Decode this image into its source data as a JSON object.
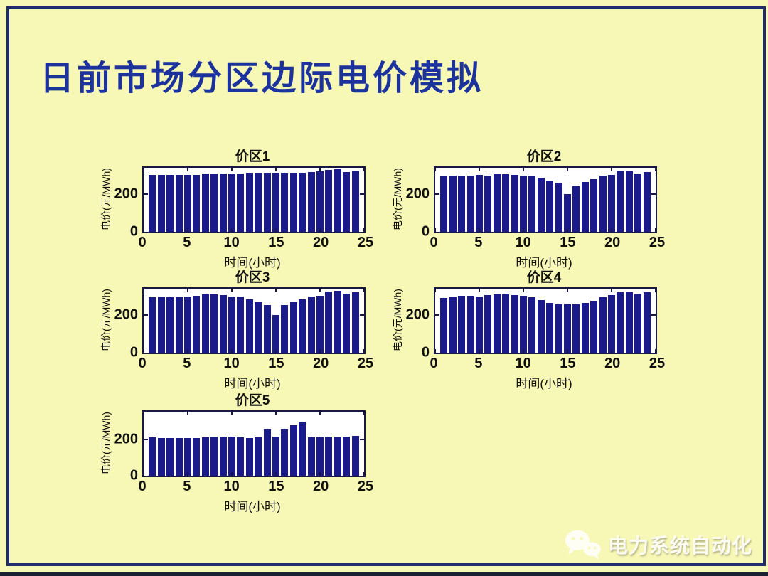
{
  "slide": {
    "title": "日前市场分区边际电价模拟"
  },
  "watermark": {
    "icon": "wechat-chat-bubbles",
    "text": "电力系统自动化"
  },
  "colors": {
    "slide_background": "#f7f7b6",
    "frame_border": "#1f2d6e",
    "title_text": "#1c339e",
    "bar_fill": "#1a1a8a",
    "axes_border": "#181845",
    "tick_text": "#101010",
    "plot_background": "#ffffff",
    "watermark_text": "#ffffff"
  },
  "chart_data": [
    {
      "type": "bar",
      "title": "价区1",
      "xlabel": "时间(小时)",
      "ylabel": "电价(元/MWh)",
      "xlim": [
        0,
        25
      ],
      "ylim": [
        0,
        340
      ],
      "xticks": [
        0,
        5,
        10,
        15,
        20,
        25
      ],
      "yticks": [
        0,
        200
      ],
      "x": [
        1,
        2,
        3,
        4,
        5,
        6,
        7,
        8,
        9,
        10,
        11,
        12,
        13,
        14,
        15,
        16,
        17,
        18,
        19,
        20,
        21,
        22,
        23,
        24
      ],
      "values": [
        304,
        301,
        301,
        301,
        302,
        304,
        310,
        311,
        311,
        311,
        311,
        312,
        314,
        314,
        314,
        314,
        314,
        314,
        316,
        321,
        330,
        331,
        318,
        325
      ]
    },
    {
      "type": "bar",
      "title": "价区2",
      "xlabel": "时间(小时)",
      "ylabel": "电价(元/MWh)",
      "xlim": [
        0,
        25
      ],
      "ylim": [
        0,
        340
      ],
      "xticks": [
        0,
        5,
        10,
        15,
        20,
        25
      ],
      "yticks": [
        0,
        200
      ],
      "x": [
        1,
        2,
        3,
        4,
        5,
        6,
        7,
        8,
        9,
        10,
        11,
        12,
        13,
        14,
        15,
        16,
        17,
        18,
        19,
        20,
        21,
        22,
        23,
        24
      ],
      "values": [
        294,
        297,
        296,
        297,
        301,
        300,
        306,
        307,
        304,
        300,
        294,
        289,
        272,
        262,
        200,
        241,
        266,
        279,
        297,
        304,
        326,
        322,
        310,
        319
      ]
    },
    {
      "type": "bar",
      "title": "价区3",
      "xlabel": "时间(小时)",
      "ylabel": "电价(元/MWh)",
      "xlim": [
        0,
        25
      ],
      "ylim": [
        0,
        340
      ],
      "xticks": [
        0,
        5,
        10,
        15,
        20,
        25
      ],
      "yticks": [
        0,
        200
      ],
      "x": [
        1,
        2,
        3,
        4,
        5,
        6,
        7,
        8,
        9,
        10,
        11,
        12,
        13,
        14,
        15,
        16,
        17,
        18,
        19,
        20,
        21,
        22,
        23,
        24
      ],
      "values": [
        295,
        298,
        296,
        300,
        300,
        303,
        308,
        309,
        305,
        300,
        297,
        284,
        268,
        255,
        200,
        252,
        270,
        285,
        298,
        304,
        325,
        327,
        314,
        322
      ]
    },
    {
      "type": "bar",
      "title": "价区4",
      "xlabel": "时间(小时)",
      "ylabel": "电价(元/MWh)",
      "xlim": [
        0,
        25
      ],
      "ylim": [
        0,
        340
      ],
      "xticks": [
        0,
        5,
        10,
        15,
        20,
        25
      ],
      "yticks": [
        0,
        200
      ],
      "x": [
        1,
        2,
        3,
        4,
        5,
        6,
        7,
        8,
        9,
        10,
        11,
        12,
        13,
        14,
        15,
        16,
        17,
        18,
        19,
        20,
        21,
        22,
        23,
        24
      ],
      "values": [
        290,
        295,
        302,
        301,
        300,
        307,
        311,
        311,
        307,
        303,
        295,
        280,
        266,
        258,
        260,
        258,
        263,
        274,
        293,
        305,
        323,
        322,
        311,
        320
      ]
    },
    {
      "type": "bar",
      "title": "价区5",
      "xlabel": "时间(小时)",
      "ylabel": "电价(元/MWh)",
      "xlim": [
        0,
        25
      ],
      "ylim": [
        0,
        350
      ],
      "xticks": [
        0,
        5,
        10,
        15,
        20,
        25
      ],
      "yticks": [
        0,
        200
      ],
      "x": [
        1,
        2,
        3,
        4,
        5,
        6,
        7,
        8,
        9,
        10,
        11,
        12,
        13,
        14,
        15,
        16,
        17,
        18,
        19,
        20,
        21,
        22,
        23,
        24
      ],
      "values": [
        212,
        208,
        208,
        208,
        208,
        208,
        210,
        213,
        213,
        213,
        210,
        208,
        210,
        258,
        215,
        257,
        278,
        297,
        210,
        212,
        213,
        215,
        215,
        216
      ]
    }
  ]
}
